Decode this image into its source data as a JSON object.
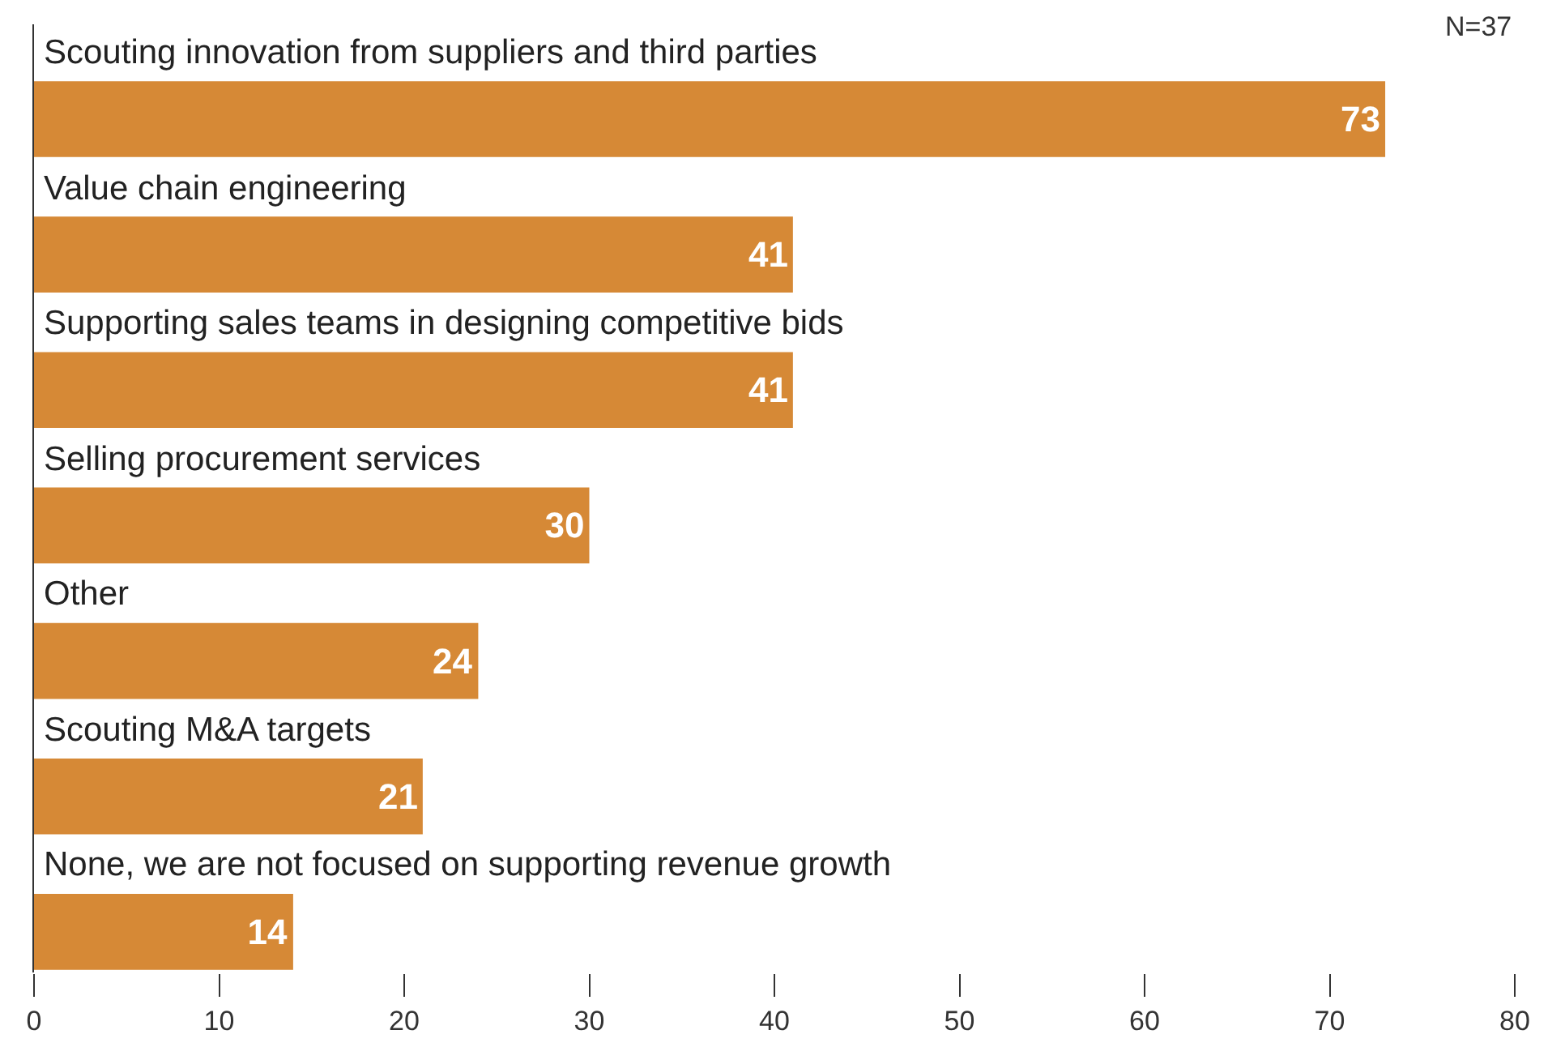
{
  "chart_data": {
    "type": "bar",
    "orientation": "horizontal",
    "categories": [
      "Scouting innovation from suppliers and third parties",
      "Value chain engineering",
      "Supporting sales teams in designing competitive bids",
      "Selling procurement services",
      "Other",
      "Scouting M&A targets",
      "None, we are not focused on supporting revenue growth"
    ],
    "values": [
      73,
      41,
      41,
      30,
      24,
      21,
      14
    ],
    "color": "#d68936",
    "data_labels": true,
    "xlim": [
      0,
      80
    ],
    "xticks": [
      0,
      10,
      20,
      30,
      40,
      50,
      60,
      70,
      80
    ],
    "legend": false,
    "annotations": [
      "N=37"
    ]
  }
}
